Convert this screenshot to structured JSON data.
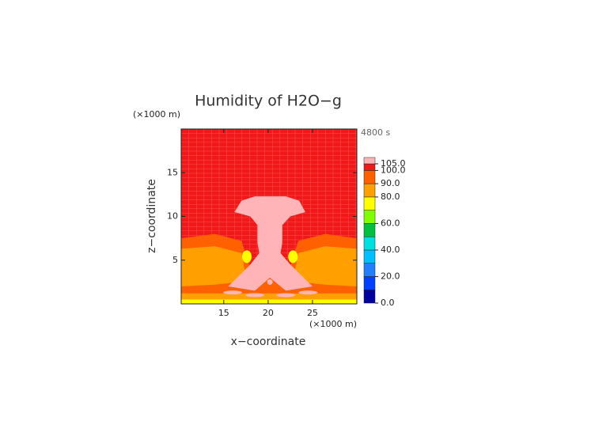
{
  "chart_data": {
    "type": "contour",
    "title": "Humidity of H2O−g",
    "y_unit": "(×1000 m)",
    "x_unit": "(×1000 m)",
    "time_label": "4800 s",
    "xlabel": "x−coordinate",
    "ylabel": "z−coordinate",
    "xlim": [
      10.2,
      30
    ],
    "xticks": [
      15,
      20,
      25
    ],
    "ylim": [
      0,
      20
    ],
    "yticks": [
      5,
      10,
      15
    ],
    "levels": [
      0,
      10,
      20,
      30,
      40,
      50,
      60,
      70,
      80,
      90,
      100,
      105
    ],
    "colors": [
      "#0000a0",
      "#0040ff",
      "#2080ff",
      "#00c0ff",
      "#00e0e0",
      "#00c040",
      "#80ff00",
      "#ffff00",
      "#ffa000",
      "#ff6000",
      "#f01818",
      "#ffb4b8"
    ],
    "colorbar_ticks": [
      {
        "value": 0,
        "label": "0.0"
      },
      {
        "value": 20,
        "label": "20.0"
      },
      {
        "value": 40,
        "label": "40.0"
      },
      {
        "value": 60,
        "label": "60.0"
      },
      {
        "value": 80,
        "label": "80.0"
      },
      {
        "value": 90,
        "label": "90.0"
      },
      {
        "value": 100,
        "label": "100.0"
      },
      {
        "value": 105,
        "label": "105.0"
      }
    ]
  }
}
